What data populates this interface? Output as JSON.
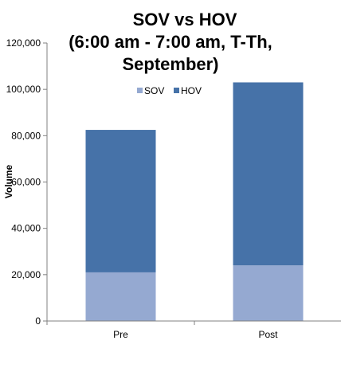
{
  "chart_data": {
    "type": "bar",
    "stacked": true,
    "title": [
      "SOV vs HOV",
      "(6:00 am - 7:00 am, T-Th,",
      "September)"
    ],
    "ylabel": "Volume",
    "xlabel": "",
    "categories": [
      "Pre",
      "Post"
    ],
    "series": [
      {
        "name": "SOV",
        "values": [
          21000,
          24000
        ],
        "color": "#95A9D1"
      },
      {
        "name": "HOV",
        "values": [
          61500,
          79000
        ],
        "color": "#4672A8"
      }
    ],
    "ylim": [
      0,
      120000
    ],
    "yticks": [
      0,
      20000,
      40000,
      60000,
      80000,
      100000,
      120000
    ],
    "ytick_labels": [
      "0",
      "20,000",
      "40,000",
      "60,000",
      "80,000",
      "100,000",
      "120,000"
    ],
    "grid": false,
    "legend_position": "top-center",
    "axis_color": "#808080"
  }
}
